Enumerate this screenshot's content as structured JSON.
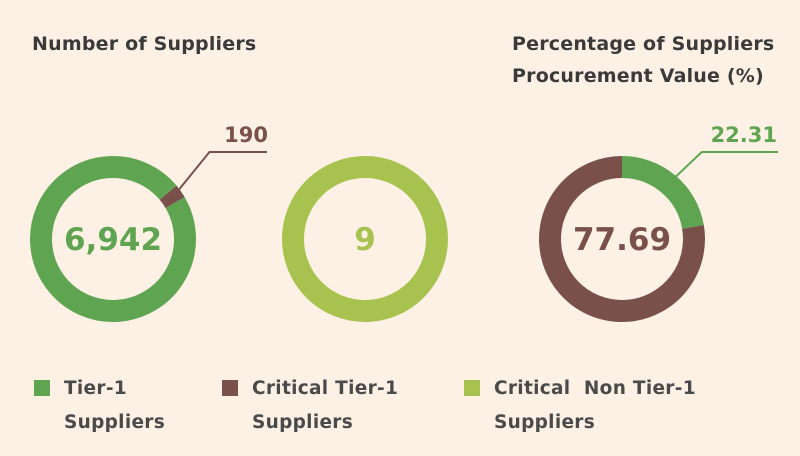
{
  "titles": {
    "left": "Number of Suppliers",
    "right": "Percentage of Suppliers Procurement Value (%)"
  },
  "colors": {
    "tier1": "#5fa551",
    "critical_tier1": "#7a514a",
    "critical_non_tier1": "#a8c250",
    "background": "#fdf1e6"
  },
  "chart_data": [
    {
      "type": "pie",
      "variant": "donut",
      "slices": [
        {
          "label": "Tier-1 Suppliers",
          "value": 6942,
          "color_key": "tier1"
        },
        {
          "label": "Critical Tier-1 Suppliers",
          "value": 190,
          "color_key": "critical_tier1"
        }
      ],
      "center_label": "6,942",
      "callout_label": "190"
    },
    {
      "type": "pie",
      "variant": "donut",
      "slices": [
        {
          "label": "Critical Non Tier-1 Suppliers",
          "value": 9,
          "color_key": "critical_non_tier1"
        }
      ],
      "center_label": "9"
    },
    {
      "type": "pie",
      "variant": "donut",
      "slices": [
        {
          "label": "Tier-1 Suppliers",
          "value": 22.31,
          "color_key": "tier1"
        },
        {
          "label": "Critical Tier-1 Suppliers",
          "value": 77.69,
          "color_key": "critical_tier1"
        }
      ],
      "center_label": "77.69",
      "callout_label": "22.31"
    }
  ],
  "legend": [
    {
      "lines": [
        "Tier-1",
        "Suppliers"
      ],
      "color_key": "tier1"
    },
    {
      "lines": [
        "Critical Tier-1",
        "Suppliers"
      ],
      "color_key": "critical_tier1"
    },
    {
      "lines": [
        "Critical  Non Tier-1",
        "Suppliers"
      ],
      "color_key": "critical_non_tier1"
    }
  ]
}
